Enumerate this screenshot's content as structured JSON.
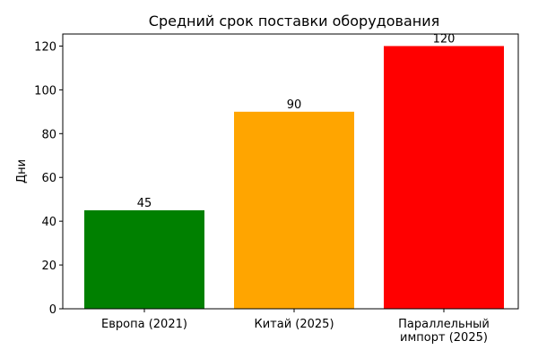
{
  "chart_data": {
    "type": "bar",
    "title": "Средний срок поставки оборудования",
    "xlabel": "",
    "ylabel": "Дни",
    "categories": [
      "Европа (2021)",
      "Китай (2025)",
      "Параллельный\nимпорт (2025)"
    ],
    "values": [
      45,
      90,
      120
    ],
    "colors": [
      "#008000",
      "#ffa500",
      "#ff0000"
    ],
    "data_labels": [
      "45",
      "90",
      "120"
    ],
    "ylim": [
      0,
      125.5
    ],
    "yticks": [
      0,
      20,
      40,
      60,
      80,
      100,
      120
    ],
    "grid": false,
    "legend": "none"
  }
}
